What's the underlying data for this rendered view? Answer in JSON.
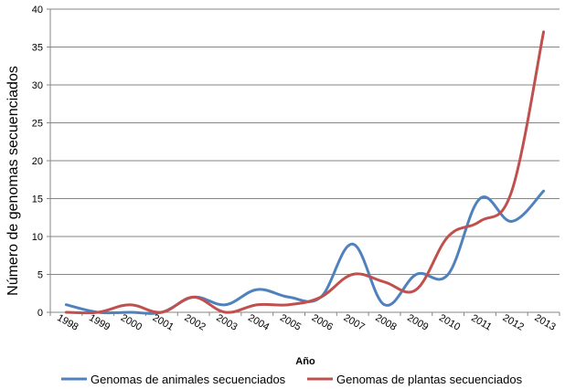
{
  "chart_data": {
    "type": "line",
    "title": "",
    "xlabel": "Año",
    "ylabel": "Número de genomas secuenciados",
    "categories": [
      "1998",
      "1999",
      "2000",
      "2001",
      "2002",
      "2003",
      "2004",
      "2005",
      "2006",
      "2007",
      "2008",
      "2009",
      "2010",
      "2011",
      "2012",
      "2013"
    ],
    "ylim": [
      0,
      40
    ],
    "yticks": [
      "0",
      "5",
      "10",
      "15",
      "20",
      "25",
      "30",
      "35",
      "40"
    ],
    "grid": true,
    "legend_position": "bottom",
    "smooth": true,
    "series": [
      {
        "name": "Genomas de animales secuenciados",
        "color": "#4F81BD",
        "values": [
          1,
          0,
          0,
          0,
          2,
          1,
          3,
          2,
          2,
          9,
          1,
          5,
          5,
          15,
          12,
          16
        ]
      },
      {
        "name": "Genomas de plantas secuenciados",
        "color": "#C0504D",
        "values": [
          0,
          0,
          1,
          0,
          2,
          0,
          1,
          1,
          2,
          5,
          4,
          3,
          10,
          12,
          16,
          37
        ]
      }
    ]
  }
}
